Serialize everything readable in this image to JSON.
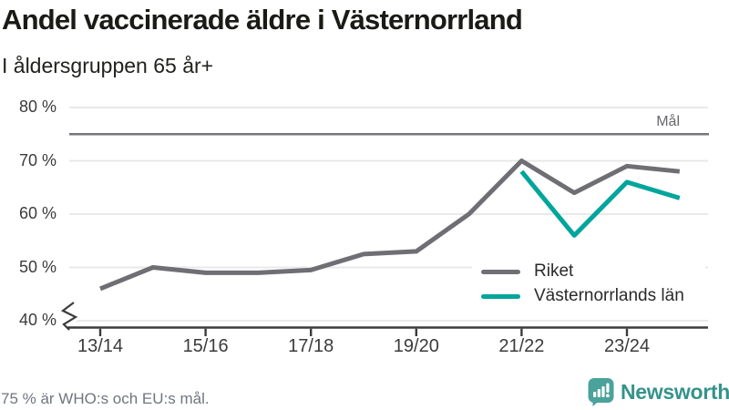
{
  "chart_data": {
    "type": "line",
    "title": "Andel vaccinerade äldre i Västernorrland",
    "subtitle": "I åldersgruppen 65 år+",
    "x": [
      "13/14",
      "14/15",
      "15/16",
      "16/17",
      "17/18",
      "18/19",
      "19/20",
      "20/21",
      "21/22",
      "22/23",
      "23/24",
      "24/25"
    ],
    "x_tick_labels": [
      "13/14",
      "15/16",
      "17/18",
      "19/20",
      "21/22",
      "23/24"
    ],
    "series": [
      {
        "name": "Riket",
        "color": "#6F6E74",
        "values": [
          46,
          50,
          49,
          49,
          49.5,
          52.5,
          53,
          60,
          70,
          64,
          69,
          68
        ]
      },
      {
        "name": "Västernorrlands län",
        "color": "#00A59B",
        "values": [
          null,
          null,
          null,
          null,
          null,
          null,
          null,
          null,
          68,
          56,
          66,
          63
        ]
      }
    ],
    "goal_line": {
      "label": "Mål",
      "value": 75,
      "color": "#76757B"
    },
    "y_ticks": [
      40,
      50,
      60,
      70,
      80
    ],
    "y_tick_labels": [
      "40 %",
      "50 %",
      "60 %",
      "70 %",
      "80 %"
    ],
    "ylim": [
      40,
      80
    ],
    "unit": "%",
    "axis_break": true,
    "grid": "horizontal",
    "legend_position": "inside-bottom-right",
    "colors": {
      "grid": "#E9E9E9",
      "axis": "#3B3B3B"
    }
  },
  "footer": {
    "note": "75 % är WHO:s och EU:s mål.",
    "brand": "Newsworthy",
    "brand_color": "#35938C",
    "icon_color": "#4BA29B"
  }
}
